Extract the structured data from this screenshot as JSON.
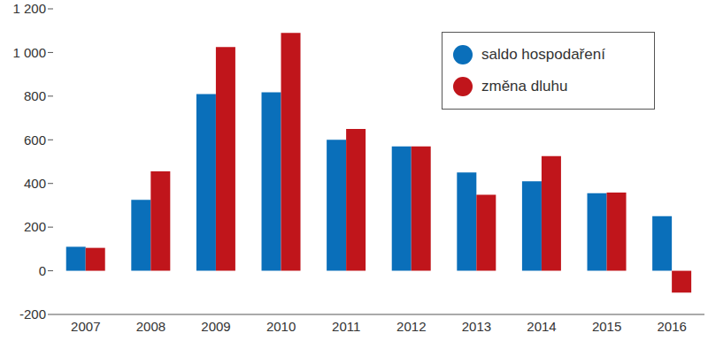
{
  "chart_data": {
    "type": "bar",
    "categories": [
      "2007",
      "2008",
      "2009",
      "2010",
      "2011",
      "2012",
      "2013",
      "2014",
      "2015",
      "2016"
    ],
    "series": [
      {
        "name": "saldo hospodaření",
        "color": "#0a6fba",
        "values": [
          110,
          325,
          810,
          818,
          600,
          570,
          450,
          410,
          355,
          250
        ]
      },
      {
        "name": "změna dluhu",
        "color": "#c0151b",
        "values": [
          105,
          455,
          1025,
          1090,
          650,
          570,
          348,
          525,
          358,
          -100
        ]
      }
    ],
    "ylim": [
      -200,
      1200
    ],
    "yticks": [
      -200,
      0,
      200,
      400,
      600,
      800,
      {
        "value": 1000,
        "label": "1 000"
      },
      {
        "value": 1200,
        "label": "1 200"
      }
    ],
    "grid": false,
    "legend": "top-right"
  }
}
